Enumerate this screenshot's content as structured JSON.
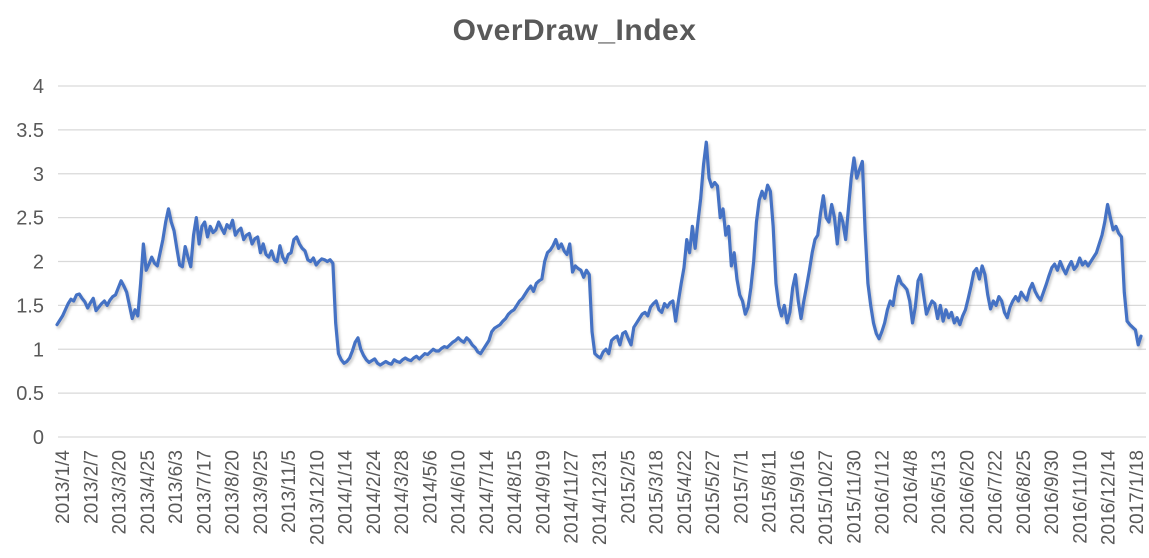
{
  "chart_data": {
    "type": "line",
    "title": "OverDraw_Index",
    "legend": "none",
    "grid": true,
    "ylim": [
      0,
      4
    ],
    "ytick_step": 0.5,
    "x_labels": [
      "2013/1/4",
      "2013/2/7",
      "2013/3/20",
      "2013/4/25",
      "2013/6/3",
      "2013/7/17",
      "2013/8/20",
      "2013/9/25",
      "2013/11/5",
      "2013/12/10",
      "2014/1/14",
      "2014/2/24",
      "2014/3/28",
      "2014/5/6",
      "2014/6/10",
      "2014/7/14",
      "2014/8/15",
      "2014/9/19",
      "2014/11/27",
      "2014/12/31",
      "2015/2/5",
      "2015/3/18",
      "2015/4/22",
      "2015/5/27",
      "2015/7/1",
      "2015/8/11",
      "2015/9/16",
      "2015/10/27",
      "2015/11/30",
      "2016/1/12",
      "2016/4/8",
      "2016/5/13",
      "2016/6/20",
      "2016/7/22",
      "2016/8/25",
      "2016/9/30",
      "2016/11/10",
      "2016/12/14",
      "2017/1/18"
    ],
    "values": [
      1.28,
      1.33,
      1.38,
      1.45,
      1.52,
      1.57,
      1.55,
      1.62,
      1.63,
      1.58,
      1.54,
      1.47,
      1.53,
      1.58,
      1.44,
      1.48,
      1.52,
      1.55,
      1.5,
      1.56,
      1.6,
      1.62,
      1.7,
      1.78,
      1.72,
      1.65,
      1.5,
      1.35,
      1.45,
      1.38,
      1.75,
      2.2,
      1.9,
      1.97,
      2.05,
      1.98,
      1.95,
      2.1,
      2.25,
      2.45,
      2.6,
      2.45,
      2.35,
      2.15,
      1.96,
      1.94,
      2.17,
      2.05,
      1.94,
      2.3,
      2.5,
      2.2,
      2.4,
      2.45,
      2.28,
      2.4,
      2.33,
      2.36,
      2.45,
      2.38,
      2.32,
      2.42,
      2.38,
      2.47,
      2.3,
      2.35,
      2.38,
      2.25,
      2.3,
      2.32,
      2.2,
      2.26,
      2.28,
      2.1,
      2.2,
      2.08,
      2.05,
      2.12,
      2.02,
      2.0,
      2.18,
      2.05,
      1.99,
      2.08,
      2.1,
      2.25,
      2.28,
      2.2,
      2.15,
      2.12,
      2.02,
      2.0,
      2.04,
      1.96,
      2.0,
      2.03,
      2.02,
      2.0,
      2.02,
      1.98,
      1.3,
      0.95,
      0.88,
      0.84,
      0.86,
      0.9,
      0.98,
      1.08,
      1.13,
      1.0,
      0.93,
      0.88,
      0.85,
      0.87,
      0.89,
      0.84,
      0.82,
      0.84,
      0.86,
      0.84,
      0.83,
      0.88,
      0.86,
      0.85,
      0.88,
      0.9,
      0.88,
      0.87,
      0.9,
      0.92,
      0.89,
      0.92,
      0.95,
      0.94,
      0.97,
      1.0,
      0.98,
      0.98,
      1.01,
      1.03,
      1.02,
      1.05,
      1.08,
      1.1,
      1.13,
      1.1,
      1.08,
      1.13,
      1.1,
      1.05,
      1.02,
      0.97,
      0.95,
      1.0,
      1.05,
      1.1,
      1.2,
      1.24,
      1.26,
      1.28,
      1.32,
      1.35,
      1.4,
      1.43,
      1.45,
      1.5,
      1.55,
      1.58,
      1.63,
      1.68,
      1.72,
      1.66,
      1.75,
      1.78,
      1.8,
      2.0,
      2.1,
      2.13,
      2.18,
      2.25,
      2.15,
      2.2,
      2.12,
      2.08,
      2.2,
      1.88,
      1.95,
      1.92,
      1.9,
      1.82,
      1.9,
      1.85,
      1.2,
      0.95,
      0.92,
      0.9,
      0.97,
      1.0,
      0.95,
      1.1,
      1.13,
      1.15,
      1.05,
      1.18,
      1.2,
      1.12,
      1.05,
      1.25,
      1.3,
      1.35,
      1.4,
      1.42,
      1.38,
      1.48,
      1.52,
      1.55,
      1.45,
      1.42,
      1.52,
      1.48,
      1.53,
      1.55,
      1.32,
      1.55,
      1.75,
      1.93,
      2.25,
      2.1,
      2.4,
      2.15,
      2.45,
      2.72,
      3.1,
      3.36,
      2.95,
      2.85,
      2.9,
      2.86,
      2.5,
      2.6,
      2.3,
      2.4,
      1.95,
      2.1,
      1.8,
      1.62,
      1.55,
      1.4,
      1.48,
      1.7,
      2.0,
      2.45,
      2.7,
      2.8,
      2.72,
      2.87,
      2.8,
      2.4,
      1.75,
      1.5,
      1.38,
      1.5,
      1.3,
      1.42,
      1.7,
      1.85,
      1.55,
      1.35,
      1.55,
      1.72,
      1.9,
      2.1,
      2.25,
      2.3,
      2.55,
      2.75,
      2.5,
      2.45,
      2.65,
      2.5,
      2.2,
      2.55,
      2.45,
      2.25,
      2.6,
      2.95,
      3.18,
      2.95,
      3.05,
      3.14,
      2.35,
      1.75,
      1.5,
      1.3,
      1.18,
      1.12,
      1.2,
      1.3,
      1.45,
      1.55,
      1.5,
      1.7,
      1.83,
      1.75,
      1.72,
      1.68,
      1.55,
      1.3,
      1.48,
      1.78,
      1.85,
      1.62,
      1.4,
      1.48,
      1.55,
      1.52,
      1.35,
      1.5,
      1.32,
      1.45,
      1.36,
      1.42,
      1.3,
      1.36,
      1.28,
      1.38,
      1.45,
      1.58,
      1.72,
      1.88,
      1.92,
      1.8,
      1.95,
      1.85,
      1.62,
      1.46,
      1.55,
      1.5,
      1.6,
      1.55,
      1.42,
      1.36,
      1.48,
      1.55,
      1.6,
      1.55,
      1.65,
      1.6,
      1.56,
      1.68,
      1.75,
      1.66,
      1.6,
      1.56,
      1.65,
      1.74,
      1.84,
      1.93,
      1.97,
      1.9,
      2.0,
      1.92,
      1.86,
      1.94,
      2.0,
      1.91,
      1.95,
      2.04,
      1.96,
      2.0,
      1.95,
      2.0,
      2.05,
      2.1,
      2.2,
      2.3,
      2.45,
      2.65,
      2.5,
      2.36,
      2.4,
      2.32,
      2.28,
      1.65,
      1.32,
      1.28,
      1.25,
      1.22,
      1.05,
      1.15
    ],
    "colors": {
      "line": "#4472C4",
      "grid": "#D9D9D9",
      "text": "#595959",
      "title": "#595959"
    }
  }
}
